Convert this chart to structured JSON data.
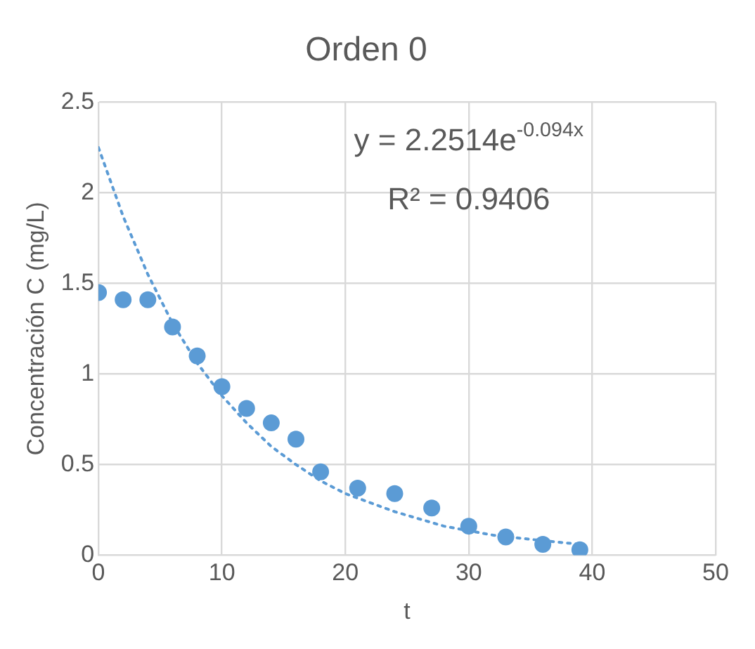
{
  "chart_data": {
    "type": "scatter",
    "title": "Orden 0",
    "xlabel": "t",
    "ylabel": "Concentración C (mg/L)",
    "xlim": [
      0,
      50
    ],
    "xticks": [
      0,
      10,
      20,
      30,
      40,
      50
    ],
    "ylim": [
      0,
      2.5
    ],
    "yticks": [
      0,
      {
        "value": 0.5,
        "label": "0.5"
      },
      1,
      {
        "value": 1.5,
        "label": "1.5"
      },
      2,
      {
        "value": 2.5,
        "label": "2.5"
      }
    ],
    "grid": true,
    "legend": false,
    "marker": "circle",
    "annotations": [
      "y = 2.2514e$^{-0.094x}$",
      "R² = 0.9406"
    ],
    "series": [
      {
        "color": "#5b9bd5",
        "x": [
          0,
          2,
          4,
          6,
          8,
          10,
          12,
          14,
          16,
          18,
          21,
          24,
          27,
          30,
          33,
          36,
          39
        ],
        "values": [
          1.45,
          1.41,
          1.41,
          1.26,
          1.1,
          0.93,
          0.81,
          0.73,
          0.64,
          0.46,
          0.37,
          0.34,
          0.26,
          0.16,
          0.1,
          0.06,
          0.03
        ]
      },
      {
        "type": "line",
        "color": "#5b9bd5",
        "line_style": "dotted",
        "marker": "none",
        "x": [
          0,
          2,
          4,
          6,
          8,
          10,
          12,
          14,
          16,
          18,
          20,
          24,
          28,
          32,
          36,
          39
        ],
        "values": [
          2.25,
          1.87,
          1.55,
          1.28,
          1.06,
          0.88,
          0.73,
          0.6,
          0.5,
          0.41,
          0.34,
          0.24,
          0.16,
          0.11,
          0.08,
          0.06
        ]
      }
    ]
  }
}
